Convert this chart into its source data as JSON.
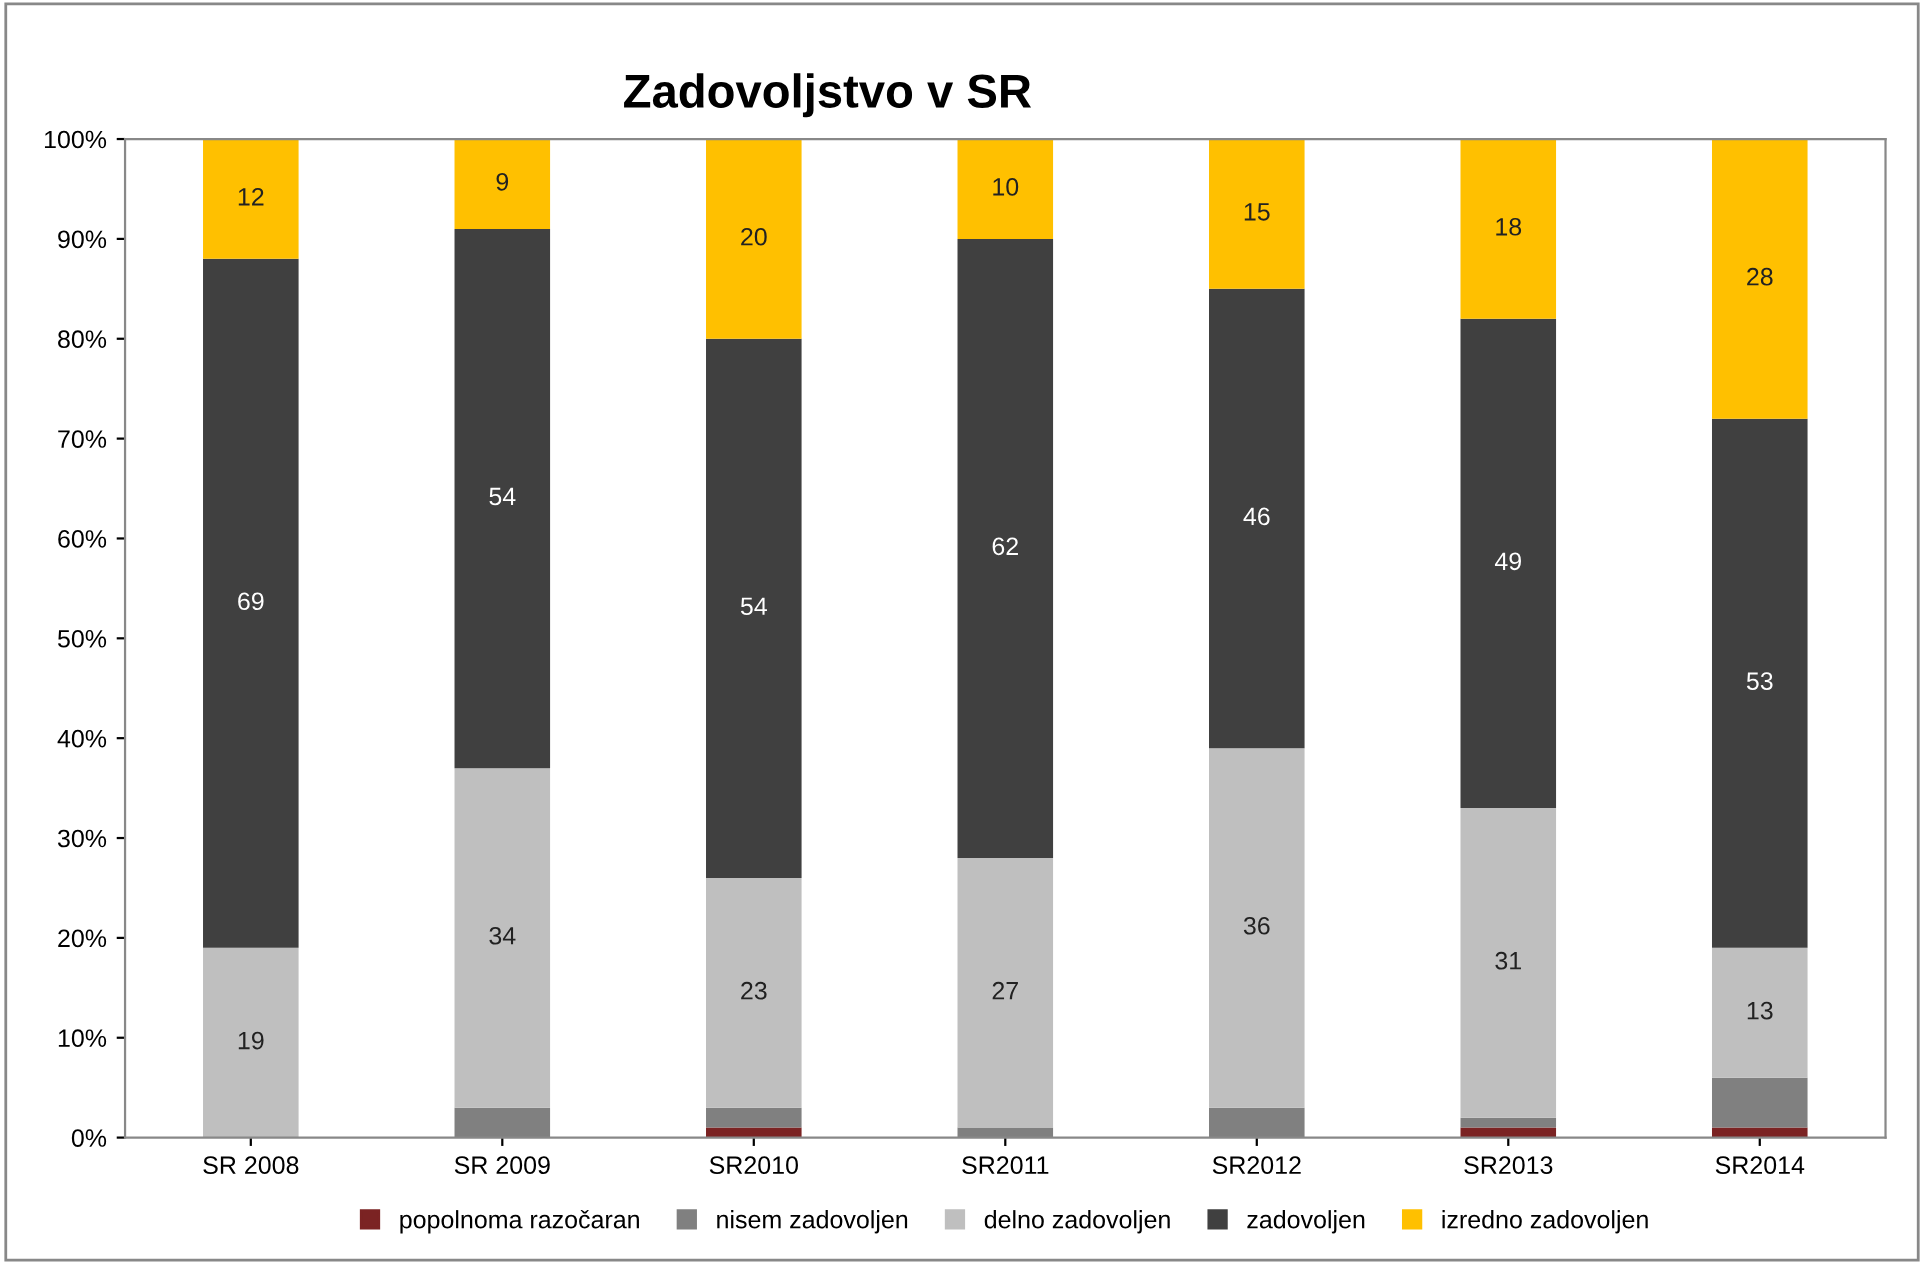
{
  "chart_data": {
    "type": "bar",
    "stacked": true,
    "title": "Zadovoljstvo v SR",
    "categories": [
      "SR 2008",
      "SR 2009",
      "SR2010",
      "SR2011",
      "SR2012",
      "SR2013",
      "SR2014"
    ],
    "series": [
      {
        "name": "popolnoma razočaran",
        "color": "#7b2323",
        "values": [
          0,
          0,
          1,
          0,
          0,
          1,
          1
        ],
        "value_labels": [
          null,
          null,
          null,
          null,
          null,
          null,
          null
        ]
      },
      {
        "name": "nisem zadovoljen",
        "color": "#808080",
        "values": [
          0,
          3,
          2,
          1,
          3,
          1,
          5
        ],
        "value_labels": [
          null,
          null,
          null,
          null,
          null,
          null,
          null
        ]
      },
      {
        "name": "delno zadovoljen",
        "color": "#bfbfbf",
        "values": [
          19,
          34,
          23,
          27,
          36,
          31,
          13
        ],
        "value_labels": [
          "19",
          "34",
          "23",
          "27",
          "36",
          "31",
          "13"
        ]
      },
      {
        "name": "zadovoljen",
        "color": "#404040",
        "values": [
          69,
          54,
          54,
          62,
          46,
          49,
          53
        ],
        "value_labels": [
          "69",
          "54",
          "54",
          "62",
          "46",
          "49",
          "53"
        ]
      },
      {
        "name": "izredno zadovoljen",
        "color": "#ffc000",
        "values": [
          12,
          9,
          20,
          10,
          15,
          18,
          28
        ],
        "value_labels": [
          "12",
          "9",
          "20",
          "10",
          "15",
          "18",
          "28"
        ]
      }
    ],
    "ylim": [
      0,
      100
    ],
    "yticks": [
      {
        "value": 0,
        "label": "0%"
      },
      {
        "value": 10,
        "label": "10%"
      },
      {
        "value": 20,
        "label": "20%"
      },
      {
        "value": 30,
        "label": "30%"
      },
      {
        "value": 40,
        "label": "40%"
      },
      {
        "value": 50,
        "label": "50%"
      },
      {
        "value": 60,
        "label": "60%"
      },
      {
        "value": 70,
        "label": "70%"
      },
      {
        "value": 80,
        "label": "80%"
      },
      {
        "value": 90,
        "label": "90%"
      },
      {
        "value": 100,
        "label": "100%"
      }
    ],
    "grid": false,
    "legend": "bottom"
  }
}
